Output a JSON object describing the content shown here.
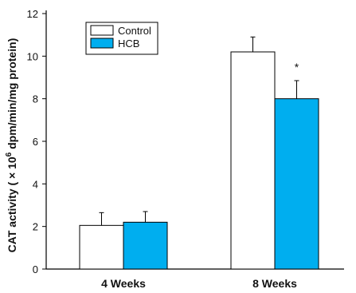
{
  "chart_data": {
    "type": "bar",
    "categories": [
      "4 Weeks",
      "8 Weeks"
    ],
    "series": [
      {
        "name": "Control",
        "values": [
          2.05,
          10.2
        ],
        "errors": [
          0.6,
          0.7
        ],
        "color": "#ffffff"
      },
      {
        "name": "HCB",
        "values": [
          2.2,
          8.0
        ],
        "errors": [
          0.5,
          0.85
        ],
        "color": "#00aeef"
      }
    ],
    "ylim": [
      0,
      12
    ],
    "yticks": [
      "0",
      "2",
      "4",
      "6",
      "8",
      "10",
      "12"
    ],
    "ylabel_main": "CAT activity ( × 10",
    "ylabel_sup": "6",
    "ylabel_tail": " dpm/min/mg protein)",
    "significance_marks": [
      {
        "category": 1,
        "series": 1,
        "label": "*"
      }
    ],
    "legend_position": "top-left",
    "grid": false
  }
}
